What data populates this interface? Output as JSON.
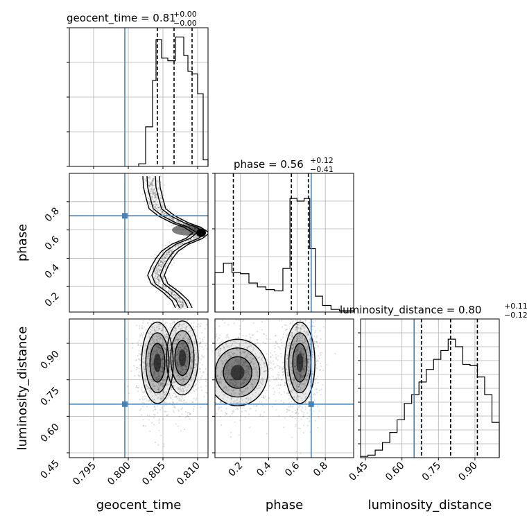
{
  "chart_data": {
    "type": "corner",
    "params": [
      "geocent_time",
      "phase",
      "luminosity_distance"
    ],
    "truths": {
      "geocent_time": 0.7995,
      "phase": 0.7,
      "luminosity_distance": 0.65
    },
    "truth_color": "#4682b4",
    "titles": [
      {
        "param": "geocent_time",
        "main": "geocent_time = 0.81",
        "plus": "+0.00",
        "minus": "−0.00"
      },
      {
        "param": "phase",
        "main": "phase = 0.56",
        "plus": "+0.12",
        "minus": "−0.41"
      },
      {
        "param": "luminosity_distance",
        "main": "luminosity_distance = 0.80",
        "plus": "+0.11",
        "minus": "−0.12"
      }
    ],
    "axis_labels": {
      "geocent_time": "geocent_time",
      "phase": "phase",
      "luminosity_distance": "luminosity_distance"
    },
    "ranges": {
      "geocent_time": [
        0.7915,
        0.8115
      ],
      "phase": [
        0.02,
        1.0
      ],
      "luminosity_distance": [
        0.43,
        1.0
      ]
    },
    "ticks": {
      "geocent_time": [
        "0.795",
        "0.800",
        "0.805",
        "0.810"
      ],
      "phase_left": [
        "0.2",
        "0.4",
        "0.6",
        "0.8"
      ],
      "phase_bottom": [
        "0.2",
        "0.4",
        "0.6",
        "0.8"
      ],
      "luminosity_distance_left": [
        "0.45",
        "0.60",
        "0.75",
        "0.90"
      ],
      "luminosity_distance_bottom": [
        "0.45",
        "0.60",
        "0.75",
        "0.90"
      ]
    },
    "quantiles": {
      "geocent_time": [
        0.8042,
        0.8066,
        0.8092
      ],
      "phase": [
        0.15,
        0.56,
        0.68
      ],
      "luminosity_distance": [
        0.68,
        0.8,
        0.91
      ]
    },
    "hist_geocent_time": {
      "edges": [
        0.8015,
        0.8025,
        0.8035,
        0.804,
        0.8048,
        0.8057,
        0.8068,
        0.808,
        0.8086,
        0.8092,
        0.81,
        0.8108,
        0.8115
      ],
      "counts": [
        0.02,
        0.3,
        0.65,
        0.96,
        0.82,
        0.8,
        0.98,
        0.84,
        0.72,
        0.7,
        0.55,
        0.05
      ]
    },
    "hist_phase": {
      "edges": [
        0.02,
        0.08,
        0.14,
        0.2,
        0.26,
        0.32,
        0.38,
        0.44,
        0.5,
        0.55,
        0.6,
        0.65,
        0.69,
        0.73,
        0.78,
        0.84,
        0.9,
        1.0
      ],
      "counts": [
        0.3,
        0.37,
        0.3,
        0.29,
        0.22,
        0.19,
        0.17,
        0.16,
        0.33,
        0.86,
        0.84,
        0.86,
        0.48,
        0.12,
        0.05,
        0.02,
        0.01
      ]
    },
    "hist_luminosity_distance": {
      "edges": [
        0.43,
        0.46,
        0.49,
        0.52,
        0.55,
        0.58,
        0.61,
        0.64,
        0.67,
        0.7,
        0.73,
        0.76,
        0.79,
        0.82,
        0.85,
        0.88,
        0.91,
        0.94,
        0.97,
        1.0
      ],
      "counts": [
        0.01,
        0.02,
        0.06,
        0.12,
        0.2,
        0.3,
        0.43,
        0.5,
        0.6,
        0.7,
        0.78,
        0.85,
        0.94,
        0.88,
        0.74,
        0.73,
        0.64,
        0.5,
        0.28
      ]
    },
    "ridge_phase_vs_geocent_time": {
      "phase": [
        0.98,
        0.9,
        0.82,
        0.75,
        0.7,
        0.65,
        0.62,
        0.58,
        0.54,
        0.5,
        0.45,
        0.4,
        0.34,
        0.28,
        0.22,
        0.16,
        0.1,
        0.05
      ],
      "geocent_time": [
        0.8033,
        0.8034,
        0.8038,
        0.8042,
        0.8055,
        0.8075,
        0.8092,
        0.8105,
        0.8095,
        0.8075,
        0.806,
        0.8052,
        0.8045,
        0.804,
        0.8045,
        0.8062,
        0.8075,
        0.808
      ]
    },
    "blobs_geocent_time_vs_luminosity_distance": [
      {
        "x": 0.8042,
        "y": 0.82,
        "sx": 0.0015,
        "sy": 0.11
      },
      {
        "x": 0.8078,
        "y": 0.84,
        "sx": 0.0015,
        "sy": 0.1
      }
    ],
    "blobs_phase_vs_luminosity_distance": [
      {
        "x": 0.62,
        "y": 0.82,
        "sx": 0.07,
        "sy": 0.11
      },
      {
        "x": 0.18,
        "y": 0.78,
        "sx": 0.14,
        "sy": 0.09
      }
    ]
  }
}
